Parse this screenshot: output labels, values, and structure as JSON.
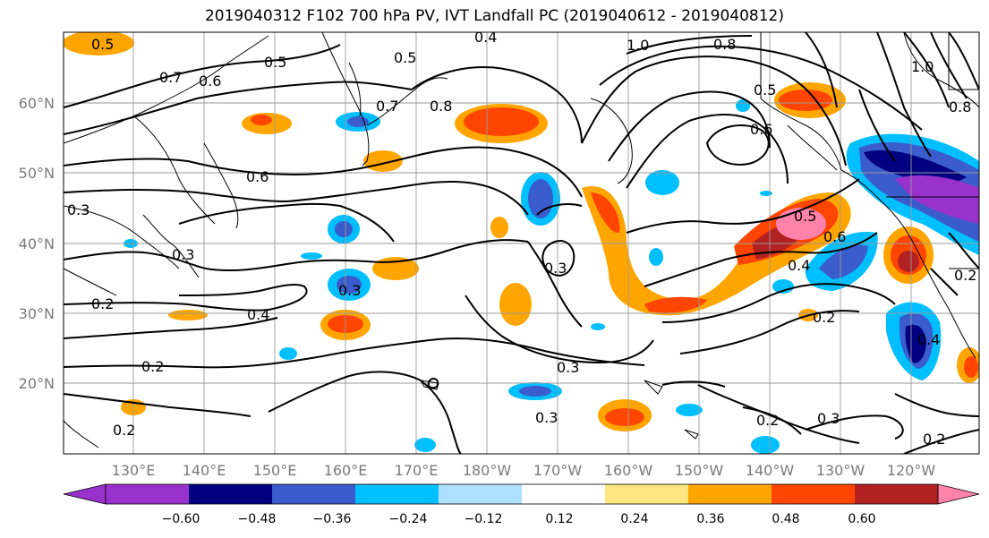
{
  "title": "2019040312 F102 700 hPa PV, IVT Landfall PC (2019040612 - 2019040812)",
  "lat_labels": [
    "60°N",
    "50°N",
    "40°N",
    "30°N",
    "20°N"
  ],
  "lon_labels": [
    "130°E",
    "140°E",
    "150°E",
    "160°E",
    "170°E",
    "180°W",
    "170°W",
    "160°W",
    "150°W",
    "140°W",
    "130°W",
    "120°W"
  ],
  "contour_labels": [
    "0.5",
    "0.4",
    "0.5",
    "0.7",
    "0.6",
    "0.5",
    "0.7",
    "0.8",
    "1.0",
    "0.8",
    "0.5",
    "0.6",
    "0.6",
    "0.3",
    "0.3",
    "0.5",
    "0.6",
    "0.4",
    "0.3",
    "0.4",
    "0.3",
    "0.2",
    "0.2",
    "0.4",
    "0.2",
    "0.3",
    "0.3",
    "0.2",
    "0.3",
    "0.2",
    "0.2",
    "0.2",
    "1.0",
    "0.8"
  ],
  "colorbar": {
    "ticks": [
      "−0.60",
      "−0.48",
      "−0.36",
      "−0.24",
      "−0.12",
      "0.12",
      "0.24",
      "0.36",
      "0.48",
      "0.60"
    ],
    "colors": [
      "#9932cc",
      "#000080",
      "#3a5ccc",
      "#00bfff",
      "#b0e0ff",
      "#ffffff",
      "#ffe680",
      "#ffa500",
      "#ff4500",
      "#b22222",
      "#ff82ab",
      "#ff82ab"
    ]
  }
}
